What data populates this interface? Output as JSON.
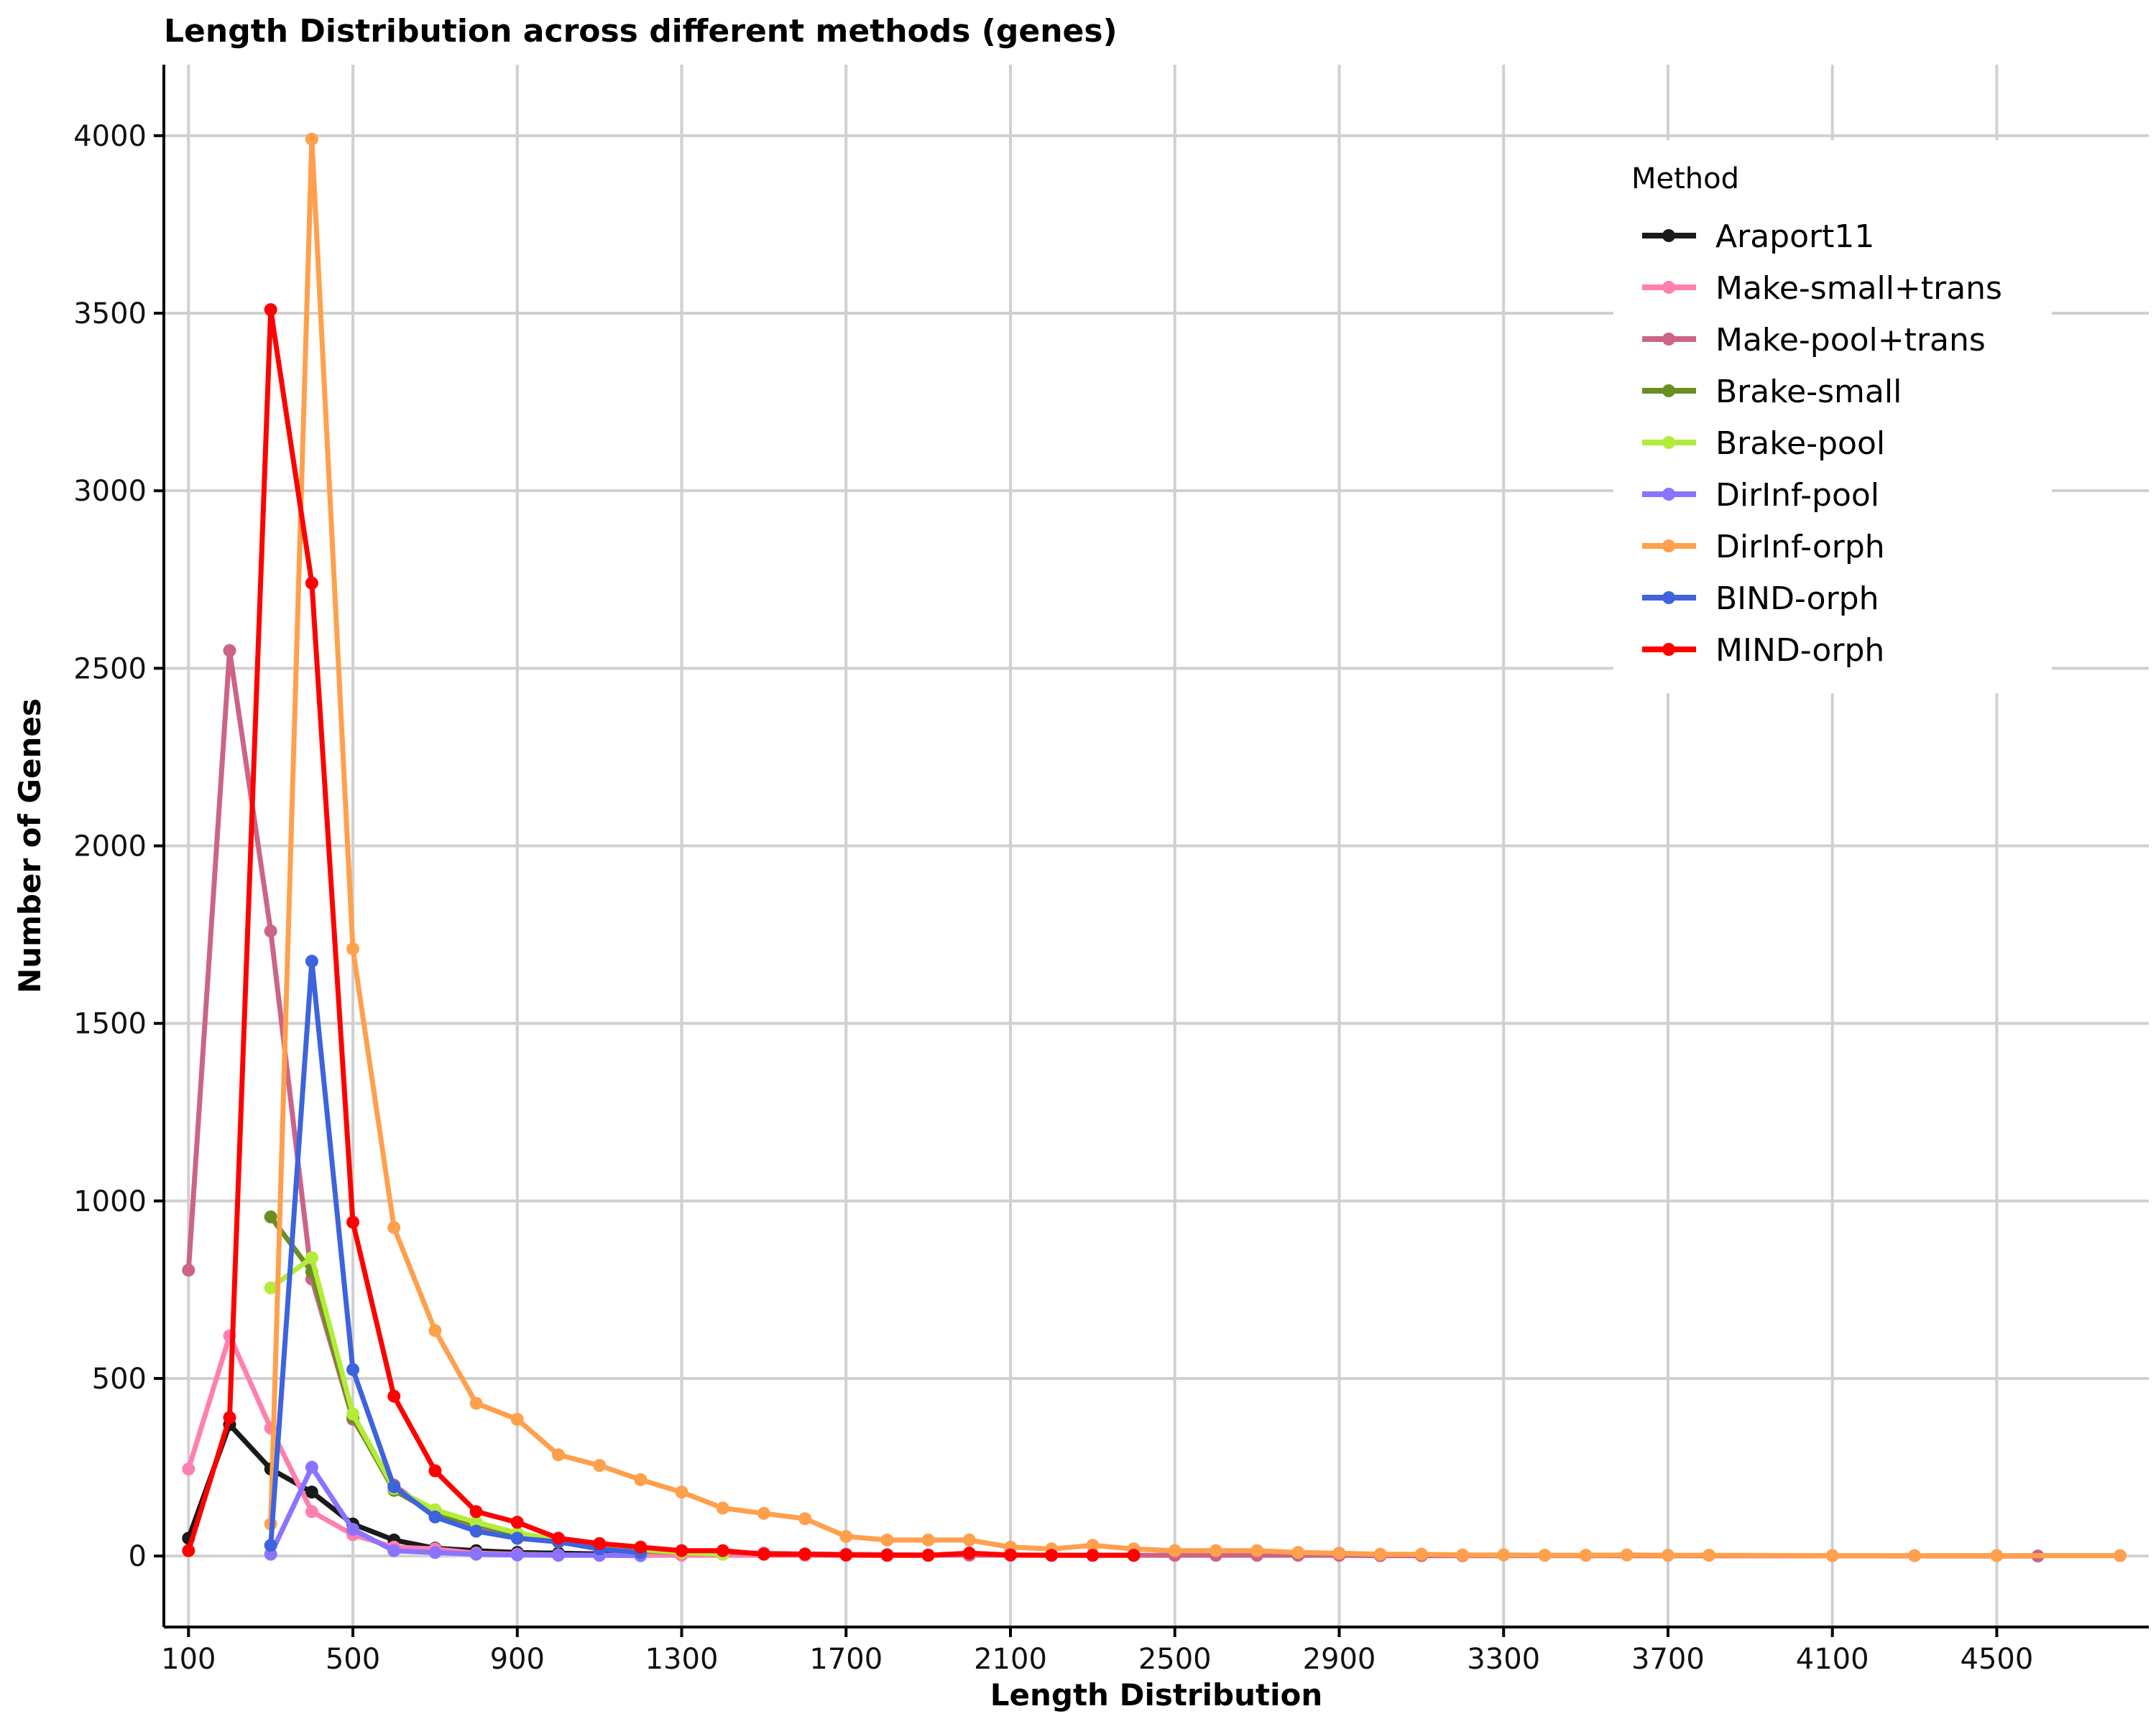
{
  "chart_data": {
    "type": "line",
    "title": "Length Distribution across different methods (genes)",
    "xlabel": "Length Distribution",
    "ylabel": "Number of Genes",
    "xlim": [
      40,
      4870
    ],
    "ylim": [
      -200,
      4200
    ],
    "x_ticks": [
      100,
      500,
      900,
      1300,
      1700,
      2100,
      2500,
      2900,
      3300,
      3700,
      4100,
      4500
    ],
    "x_tick_labels": [
      "100",
      "500",
      "900",
      "1300",
      "1700",
      "2100",
      "2500",
      "2900",
      "3300",
      "3700",
      "4100",
      "4500"
    ],
    "y_ticks": [
      0,
      500,
      1000,
      1500,
      2000,
      2500,
      3000,
      3500,
      4000
    ],
    "y_tick_labels": [
      "0",
      "500",
      "1000",
      "1500",
      "2000",
      "2500",
      "3000",
      "3500",
      "4000"
    ],
    "grid": true,
    "legend_title": "Method",
    "legend_position": "top-right",
    "series": [
      {
        "name": "Araport11",
        "color": "#1a1a1a",
        "x": [
          100,
          200,
          300,
          400,
          500,
          600,
          700,
          800,
          900,
          1000,
          1100,
          1200,
          1300
        ],
        "y": [
          50,
          370,
          245,
          180,
          90,
          45,
          22,
          15,
          10,
          8,
          6,
          5,
          3
        ]
      },
      {
        "name": "Make-small+trans",
        "color": "#ff7fb0",
        "x": [
          100,
          200,
          300,
          400,
          500,
          600,
          700,
          800,
          900,
          1000,
          1100,
          1200,
          1300,
          1600,
          1700,
          1800,
          1900,
          2000,
          2100,
          2200
        ],
        "y": [
          245,
          620,
          360,
          125,
          60,
          25,
          20,
          8,
          5,
          3,
          2,
          2,
          2,
          2,
          2,
          2,
          2,
          2,
          2,
          2
        ]
      },
      {
        "name": "Make-pool+trans",
        "color": "#cc6488",
        "x": [
          100,
          200,
          300,
          400,
          500,
          600,
          700,
          800,
          900,
          1000,
          1100,
          1200,
          1300,
          1400,
          1500,
          1600,
          1700,
          1800,
          1900,
          2000,
          2100,
          2200,
          2300,
          2400,
          2500,
          2600,
          2700,
          2800,
          2900,
          3000,
          3100,
          3200,
          4600
        ],
        "y": [
          805,
          2550,
          1760,
          780,
          385,
          200,
          115,
          80,
          60,
          45,
          30,
          20,
          12,
          10,
          8,
          6,
          5,
          4,
          3,
          3,
          3,
          2,
          2,
          2,
          2,
          2,
          2,
          2,
          2,
          1,
          1,
          1,
          0
        ]
      },
      {
        "name": "Brake-small",
        "color": "#6b8e23",
        "x": [
          300,
          400,
          500,
          600,
          700,
          800,
          900,
          1000,
          1100,
          1200,
          1300,
          1400
        ],
        "y": [
          955,
          800,
          390,
          185,
          120,
          90,
          60,
          40,
          25,
          15,
          10,
          5
        ]
      },
      {
        "name": "Brake-pool",
        "color": "#b3ec3a",
        "x": [
          300,
          400,
          500,
          600,
          700,
          800,
          900,
          1000,
          1100,
          1200,
          1300,
          1400
        ],
        "y": [
          755,
          840,
          400,
          190,
          130,
          95,
          65,
          45,
          30,
          18,
          10,
          5
        ]
      },
      {
        "name": "DirInf-pool",
        "color": "#8b73ff",
        "x": [
          300,
          400,
          500,
          600,
          700,
          800,
          900,
          1000,
          1100,
          1200
        ],
        "y": [
          5,
          250,
          75,
          15,
          10,
          5,
          3,
          2,
          2,
          1
        ]
      },
      {
        "name": "DirInf-orph",
        "color": "#ffa04d",
        "x": [
          300,
          400,
          500,
          600,
          700,
          800,
          900,
          1000,
          1100,
          1200,
          1300,
          1400,
          1500,
          1600,
          1700,
          1800,
          1900,
          2000,
          2100,
          2200,
          2300,
          2400,
          2500,
          2600,
          2700,
          2800,
          2900,
          3000,
          3100,
          3200,
          3300,
          3400,
          3500,
          3600,
          3700,
          3800,
          4100,
          4300,
          4500,
          4800
        ],
        "y": [
          90,
          3990,
          1710,
          925,
          635,
          430,
          385,
          285,
          255,
          215,
          180,
          135,
          120,
          105,
          55,
          45,
          45,
          45,
          25,
          20,
          30,
          20,
          15,
          15,
          15,
          10,
          8,
          5,
          5,
          3,
          3,
          2,
          2,
          3,
          2,
          2,
          1,
          1,
          1,
          1
        ]
      },
      {
        "name": "BIND-orph",
        "color": "#3d63dd",
        "x": [
          300,
          400,
          500,
          600,
          700,
          800,
          900,
          1000,
          1100,
          1200
        ],
        "y": [
          30,
          1675,
          525,
          195,
          110,
          70,
          50,
          40,
          20,
          10
        ]
      },
      {
        "name": "MIND-orph",
        "color": "#ff0000",
        "x": [
          100,
          200,
          300,
          400,
          500,
          600,
          700,
          800,
          900,
          1000,
          1100,
          1200,
          1300,
          1400,
          1500,
          1600,
          1700,
          1800,
          1900,
          2000,
          2100,
          2200,
          2300,
          2400
        ],
        "y": [
          15,
          390,
          3510,
          2740,
          940,
          450,
          240,
          125,
          95,
          50,
          35,
          25,
          15,
          15,
          5,
          5,
          3,
          2,
          2,
          8,
          3,
          2,
          2,
          2
        ]
      }
    ]
  }
}
